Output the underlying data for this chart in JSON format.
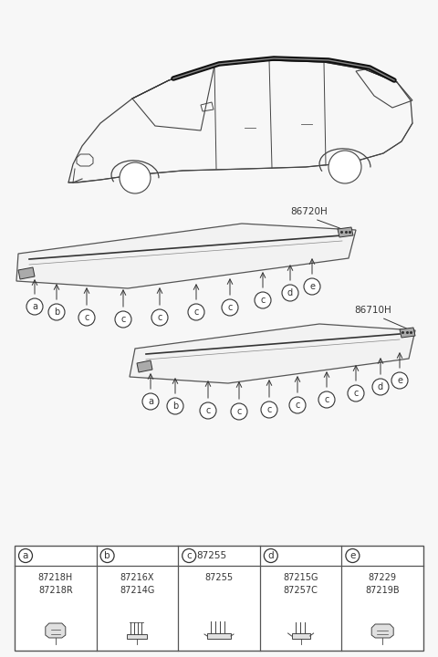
{
  "bg_color": "#f7f7f7",
  "text_color": "#333333",
  "label_86720H": "86720H",
  "label_86710H": "86710H",
  "parts_table": {
    "headers": [
      "a",
      "b",
      "c",
      "d",
      "e"
    ],
    "col_a_parts": [
      "87218H",
      "87218R"
    ],
    "col_b_parts": [
      "87216X",
      "87214G"
    ],
    "col_c_parts": [
      "87255"
    ],
    "col_d_parts": [
      "87215G",
      "87257C"
    ],
    "col_e_parts": [
      "87229",
      "87219B"
    ]
  },
  "strip1_labels": [
    "a",
    "b",
    "c",
    "c",
    "c",
    "c",
    "c",
    "c",
    "d",
    "e"
  ],
  "strip2_labels": [
    "a",
    "b",
    "c",
    "c",
    "c",
    "c",
    "c",
    "c",
    "d",
    "e"
  ]
}
